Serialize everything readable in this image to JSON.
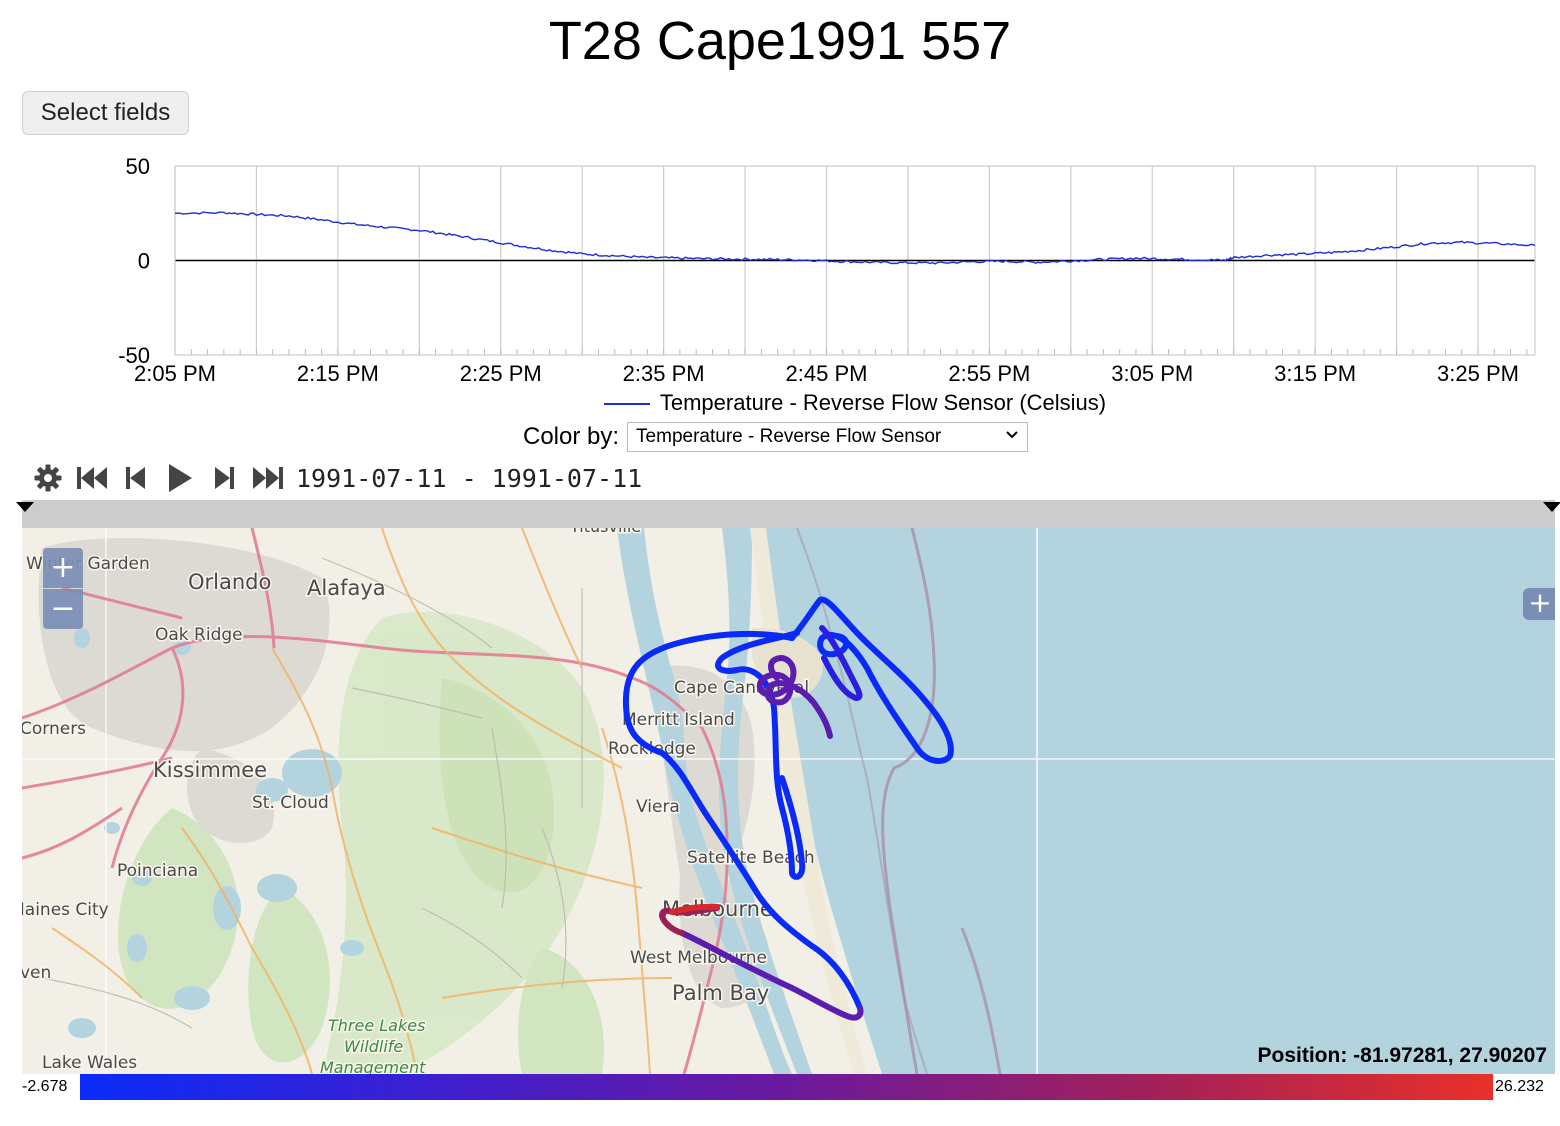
{
  "title": "T28 Cape1991 557",
  "select_fields_label": "Select fields",
  "chart_data": {
    "type": "line",
    "title": "",
    "xlabel": "",
    "ylabel": "",
    "ylim": [
      -50,
      50
    ],
    "yticks": [
      "50",
      "0",
      "-50"
    ],
    "x_tick_labels": [
      "2:05 PM",
      "2:15 PM",
      "2:25 PM",
      "2:35 PM",
      "2:45 PM",
      "2:55 PM",
      "3:05 PM",
      "3:15 PM",
      "3:25 PM"
    ],
    "x_range_minutes": [
      0,
      83.5
    ],
    "grid": true,
    "series": [
      {
        "name": "Temperature - Reverse Flow Sensor (Celsius)",
        "color": "#1f2fd6",
        "points": [
          [
            0,
            25
          ],
          [
            3,
            25.3
          ],
          [
            5,
            24.4
          ],
          [
            7,
            23.6
          ],
          [
            9,
            21.5
          ],
          [
            11,
            19.2
          ],
          [
            13,
            17.5
          ],
          [
            15,
            16
          ],
          [
            17,
            13.5
          ],
          [
            19,
            10.8
          ],
          [
            21,
            8
          ],
          [
            23,
            5.5
          ],
          [
            25,
            3.5
          ],
          [
            27,
            2.5
          ],
          [
            29,
            1.6
          ],
          [
            31,
            1.2
          ],
          [
            33,
            0.9
          ],
          [
            35,
            0.7
          ],
          [
            37,
            0.5
          ],
          [
            39,
            0.2
          ],
          [
            41,
            -0.5
          ],
          [
            43,
            -1
          ],
          [
            45,
            -1.2
          ],
          [
            47,
            -1.3
          ],
          [
            49,
            -0.6
          ],
          [
            51,
            -0.4
          ],
          [
            53,
            -0.9
          ],
          [
            55,
            -0.2
          ],
          [
            57,
            0.6
          ],
          [
            59,
            1.2
          ],
          [
            61,
            0.8
          ],
          [
            63,
            0.4
          ],
          [
            64.5,
            0.1
          ],
          [
            65,
            1.5
          ],
          [
            67,
            2.8
          ],
          [
            69,
            3.3
          ],
          [
            71,
            4.2
          ],
          [
            73,
            5.5
          ],
          [
            75,
            7.3
          ],
          [
            77,
            9.2
          ],
          [
            79,
            9.6
          ],
          [
            81,
            9.0
          ],
          [
            83.5,
            8.0
          ]
        ]
      }
    ]
  },
  "legend": {
    "label": "Temperature - Reverse Flow Sensor (Celsius)"
  },
  "color_by": {
    "label": "Color by:",
    "selected": "Temperature - Reverse Flow Sensor"
  },
  "player": {
    "controls": [
      "gear-icon",
      "skip-to-start-icon",
      "step-back-icon",
      "play-icon",
      "step-forward-icon",
      "skip-to-end-icon"
    ],
    "date_range": "1991-07-11 - 1991-07-11"
  },
  "map": {
    "place_labels": [
      {
        "id": "winter-garden",
        "text": "Winter Garden"
      },
      {
        "id": "orlando",
        "text": "Orlando"
      },
      {
        "id": "alafaya",
        "text": "Alafaya"
      },
      {
        "id": "oak-ridge",
        "text": "Oak Ridge"
      },
      {
        "id": "corners",
        "text": "Corners"
      },
      {
        "id": "kissimmee",
        "text": "Kissimmee"
      },
      {
        "id": "st-cloud",
        "text": "St. Cloud"
      },
      {
        "id": "poinciana",
        "text": "Poinciana"
      },
      {
        "id": "haines-city",
        "text": "Haines City"
      },
      {
        "id": "haven",
        "text": "ven"
      },
      {
        "id": "lake-wales",
        "text": "Lake Wales"
      },
      {
        "id": "titusville",
        "text": "Titusville"
      },
      {
        "id": "cape-canaveral",
        "text": "Cape Canaveral"
      },
      {
        "id": "merritt-island",
        "text": "Merritt Island"
      },
      {
        "id": "rockledge",
        "text": "Rockledge"
      },
      {
        "id": "viera",
        "text": "Viera"
      },
      {
        "id": "satellite-beach",
        "text": "Satellite Beach"
      },
      {
        "id": "melbourne",
        "text": "Melbourne"
      },
      {
        "id": "west-melbourne",
        "text": "West Melbourne"
      },
      {
        "id": "palm-bay",
        "text": "Palm Bay"
      },
      {
        "id": "three-lakes-1",
        "text": "Three Lakes"
      },
      {
        "id": "three-lakes-2",
        "text": "Wildlife"
      },
      {
        "id": "three-lakes-3",
        "text": "Management"
      }
    ],
    "zoom_in": "+",
    "zoom_out": "−",
    "layers_button": "+",
    "position_readout": "Position: -81.97281, 27.90207",
    "colors": {
      "ocean": "#b3d3de",
      "land": "#f2efe6",
      "track_low": "#0a2bf7",
      "track_high": "#e8302a"
    }
  },
  "colorbar": {
    "min": "-2.678",
    "max": "26.232"
  }
}
